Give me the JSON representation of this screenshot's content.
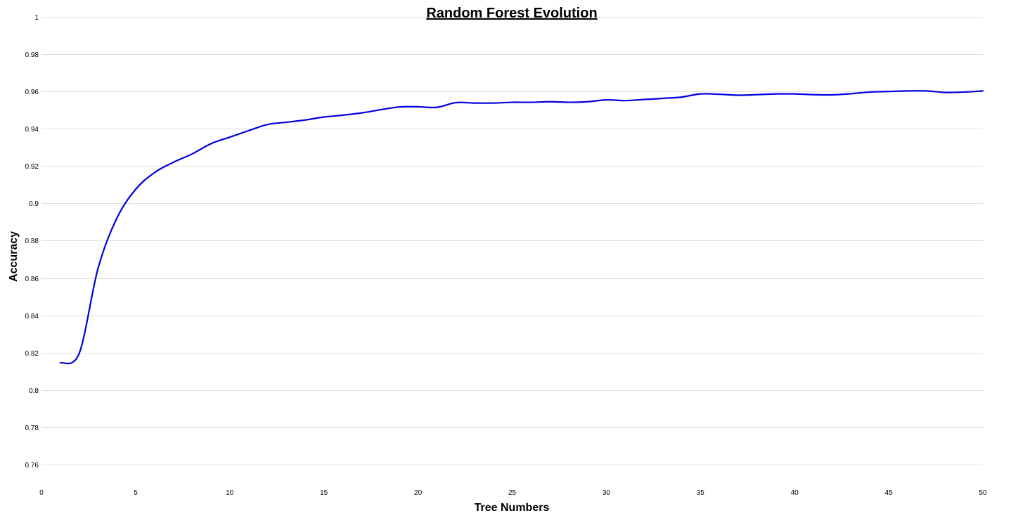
{
  "chart_data": {
    "type": "line",
    "title": "Random Forest Evolution",
    "xlabel": "Tree Numbers",
    "ylabel": "Accuracy",
    "xlim": [
      0,
      50
    ],
    "ylim": [
      0.75,
      1.0
    ],
    "x_ticks": [
      "0",
      "5",
      "10",
      "15",
      "20",
      "25",
      "30",
      "35",
      "40",
      "45",
      "50"
    ],
    "y_ticks": [
      "0.76",
      "0.78",
      "0.8",
      "0.82",
      "0.84",
      "0.86",
      "0.88",
      "0.9",
      "0.92",
      "0.94",
      "0.96",
      "0.98",
      "1"
    ],
    "grid": true,
    "legend": "none",
    "series": [
      {
        "color": "#0000e0",
        "x": [
          1,
          2,
          3,
          4,
          5,
          6,
          7,
          8,
          9,
          10,
          11,
          12,
          13,
          14,
          15,
          16,
          17,
          18,
          19,
          20,
          21,
          22,
          23,
          24,
          25,
          26,
          27,
          28,
          29,
          30,
          31,
          32,
          33,
          34,
          35,
          36,
          37,
          38,
          39,
          40,
          41,
          42,
          43,
          44,
          45,
          46,
          47,
          48,
          49,
          50
        ],
        "y": [
          0.8145,
          0.8195,
          0.865,
          0.892,
          0.9075,
          0.9165,
          0.922,
          0.9265,
          0.932,
          0.9355,
          0.939,
          0.9423,
          0.9435,
          0.9447,
          0.9463,
          0.9473,
          0.9485,
          0.9502,
          0.9517,
          0.9518,
          0.9515,
          0.954,
          0.9538,
          0.9538,
          0.9542,
          0.9542,
          0.9545,
          0.9542,
          0.9545,
          0.9555,
          0.9551,
          0.9557,
          0.9563,
          0.957,
          0.9587,
          0.9585,
          0.958,
          0.9583,
          0.9587,
          0.9587,
          0.9583,
          0.9582,
          0.9588,
          0.9597,
          0.96,
          0.9603,
          0.9603,
          0.9595,
          0.9597,
          0.9603
        ]
      }
    ]
  }
}
